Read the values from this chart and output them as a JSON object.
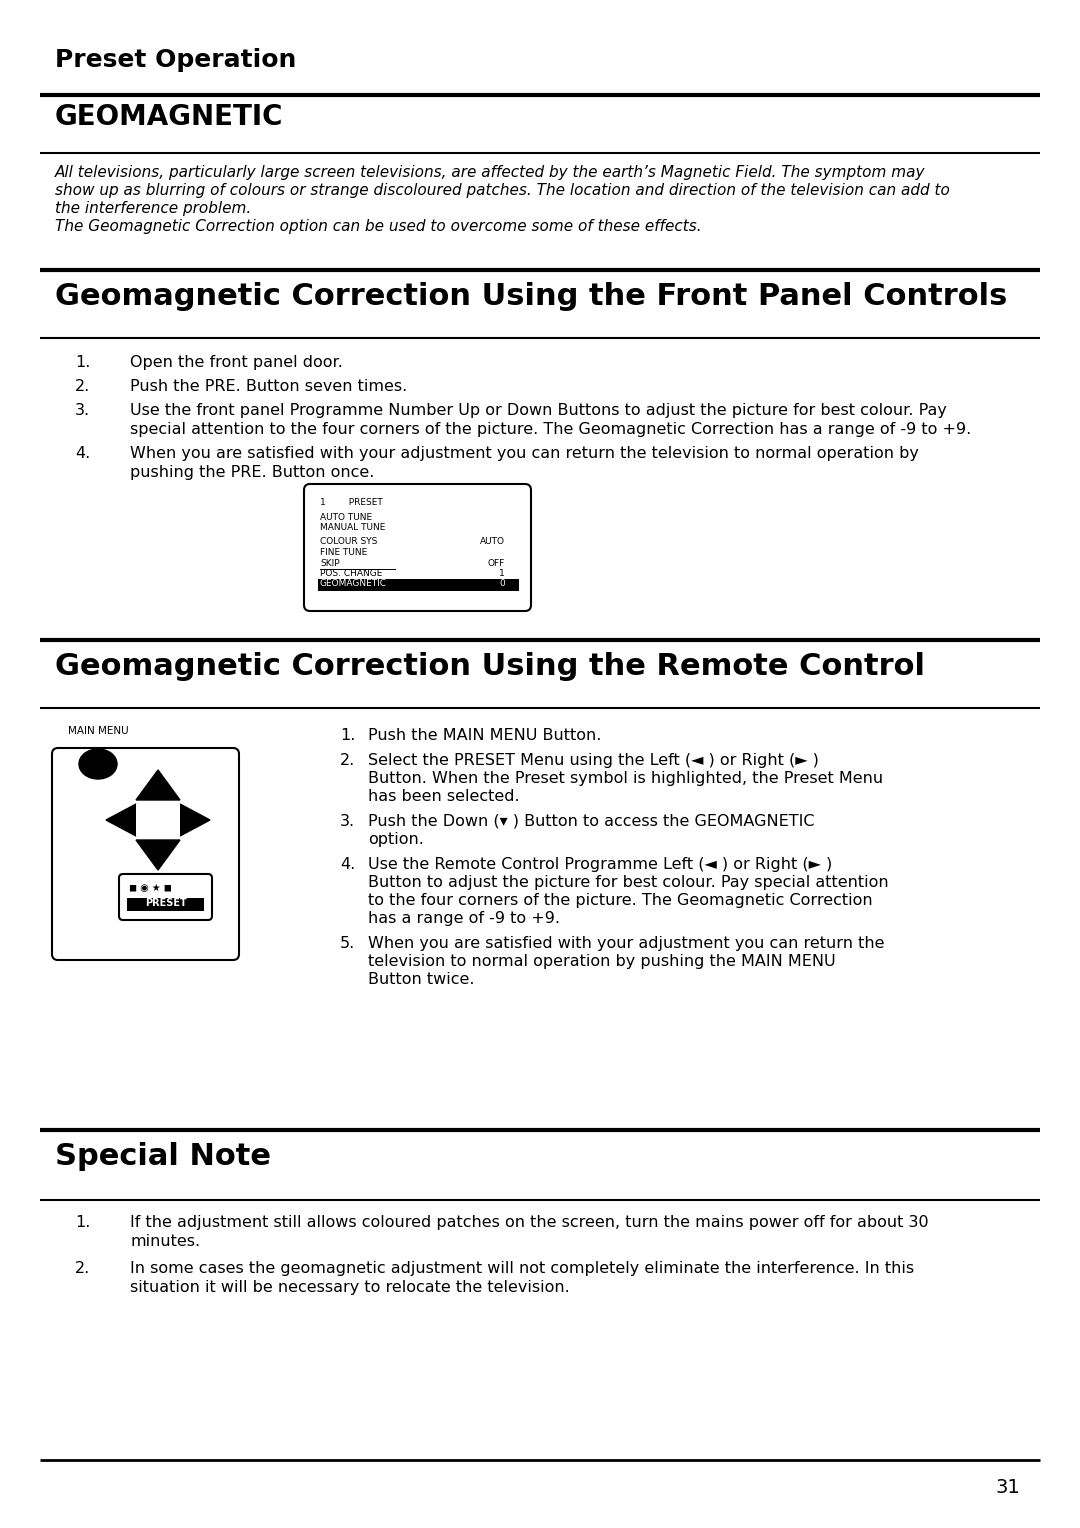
{
  "bg_color": "#ffffff",
  "text_color": "#000000",
  "page_number": "31",
  "preset_operation_title": "Preset Operation",
  "geomagnetic_title": "GEOMAGNETIC",
  "geo_italic_lines": [
    "All televisions, particularly large screen televisions, are affected by the earth’s Magnetic Field. The symptom may",
    "show up as blurring of colours or strange discoloured patches. The location and direction of the television can add to",
    "the interference problem.",
    "The Geomagnetic Correction option can be used to overcome some of these effects."
  ],
  "front_panel_title": "Geomagnetic Correction Using the Front Panel Controls",
  "front_panel_steps": [
    [
      "1.",
      "Open the front panel door."
    ],
    [
      "2.",
      "Push the PRE. Button seven times."
    ],
    [
      "3.",
      "Use the front panel Programme Number Up or Down Buttons to adjust the picture for best colour. Pay",
      "special attention to the four corners of the picture. The Geomagnetic Correction has a range of -9 to +9."
    ],
    [
      "4.",
      "When you are satisfied with your adjustment you can return the television to normal operation by",
      "pushing the PRE. Button once."
    ]
  ],
  "remote_title": "Geomagnetic Correction Using the Remote Control",
  "remote_steps": [
    [
      "1.",
      "Push the MAIN MENU Button."
    ],
    [
      "2.",
      "Select the PRESET Menu using the Left (◄ ) or Right (► )",
      "Button. When the Preset symbol is highlighted, the Preset Menu",
      "has been selected."
    ],
    [
      "3.",
      "Push the Down (▾ ) Button to access the GEOMAGNETIC",
      "option."
    ],
    [
      "4.",
      "Use the Remote Control Programme Left (◄ ) or Right (► )",
      "Button to adjust the picture for best colour. Pay special attention",
      "to the four corners of the picture. The Geomagnetic Correction",
      "has a range of -9 to +9."
    ],
    [
      "5.",
      "When you are satisfied with your adjustment you can return the",
      "television to normal operation by pushing the MAIN MENU",
      "Button twice."
    ]
  ],
  "special_note_title": "Special Note",
  "special_note_steps": [
    [
      "1.",
      "If the adjustment still allows coloured patches on the screen, turn the mains power off for about 30",
      "minutes."
    ],
    [
      "2.",
      "In some cases the geomagnetic adjustment will not completely eliminate the interference. In this",
      "situation it will be necessary to relocate the television."
    ]
  ],
  "menu_lines": [
    [
      "1        PRESET",
      ""
    ],
    [
      "",
      ""
    ],
    [
      "AUTO TUNE",
      ""
    ],
    [
      "MANUAL TUNE",
      ""
    ],
    [
      "",
      ""
    ],
    [
      "COLOUR SYS",
      "AUTO"
    ],
    [
      "FINE TUNE",
      ""
    ],
    [
      "SKIP",
      "OFF"
    ],
    [
      "POS. CHANGE",
      "1"
    ],
    [
      "GEOMAGNETIC",
      "0"
    ]
  ]
}
